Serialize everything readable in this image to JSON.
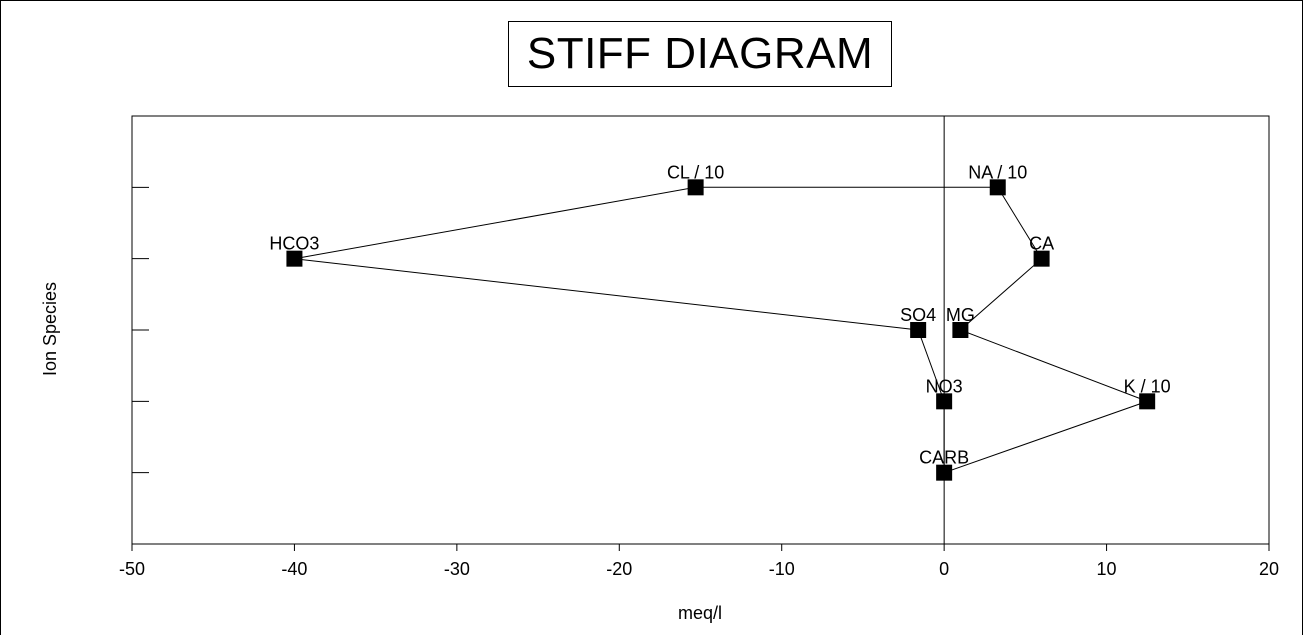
{
  "chart_data": {
    "type": "scatter",
    "title": "STIFF DIAGRAM",
    "xlabel": "meq/l",
    "ylabel": "Ion Species",
    "xlim": [
      -50,
      20
    ],
    "ylim": [
      0,
      6
    ],
    "xticks": [
      "-50",
      "-40",
      "-30",
      "-20",
      "-10",
      "0",
      "10",
      "20"
    ],
    "xtick_values": [
      -50,
      -40,
      -30,
      -20,
      -10,
      0,
      10,
      20
    ],
    "ytick_values": [
      1,
      2,
      3,
      4,
      5
    ],
    "grid": false,
    "series": [
      {
        "points": [
          {
            "label": "NA / 10",
            "x": 3.3,
            "y": 5
          },
          {
            "label": "CA",
            "x": 6.0,
            "y": 4
          },
          {
            "label": "MG",
            "x": 1.0,
            "y": 3
          },
          {
            "label": "K / 10",
            "x": 12.5,
            "y": 2
          },
          {
            "label": "CARB",
            "x": 0.0,
            "y": 1
          },
          {
            "label": "NO3",
            "x": 0.0,
            "y": 2
          },
          {
            "label": "SO4",
            "x": -1.6,
            "y": 3
          },
          {
            "label": "HCO3",
            "x": -40.0,
            "y": 4
          },
          {
            "label": "CL / 10",
            "x": -15.3,
            "y": 5
          }
        ],
        "closed": true,
        "color": "#000000"
      }
    ]
  }
}
